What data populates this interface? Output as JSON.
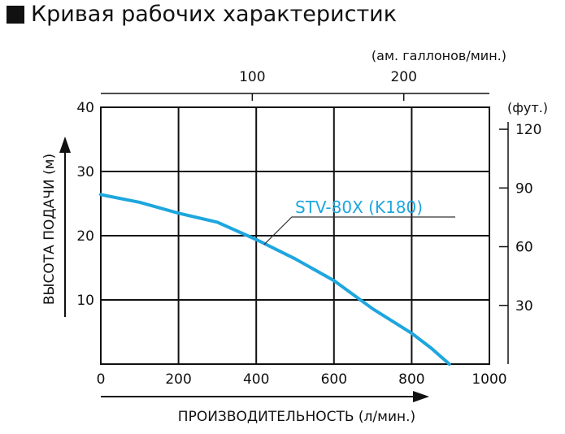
{
  "title": "Кривая рабочих характеристик",
  "chart_data": {
    "type": "line",
    "title": "Кривая рабочих характеристик",
    "xlabel": "ПРОИЗВОДИТЕЛЬНОСТЬ (л/мин.)",
    "ylabel": "ВЫСОТА ПОДАЧИ (м)",
    "x2label": "(ам. галлонов/мин.)",
    "y2label": "(фут.)",
    "xlim": [
      0,
      1000
    ],
    "ylim": [
      0,
      40
    ],
    "xticks": [
      0,
      200,
      400,
      600,
      800,
      1000
    ],
    "yticks": [
      10,
      20,
      30,
      40
    ],
    "x2ticks": [
      100,
      200
    ],
    "y2ticks": [
      30,
      60,
      90,
      120
    ],
    "grid": true,
    "series": [
      {
        "name": "STV-80X (K180)",
        "color": "#1ea6de",
        "x": [
          0,
          100,
          200,
          300,
          400,
          500,
          600,
          700,
          800,
          850,
          897
        ],
        "y": [
          26.4,
          25.2,
          23.5,
          22.1,
          19.4,
          16.4,
          13.0,
          8.6,
          4.8,
          2.5,
          0
        ]
      }
    ]
  }
}
